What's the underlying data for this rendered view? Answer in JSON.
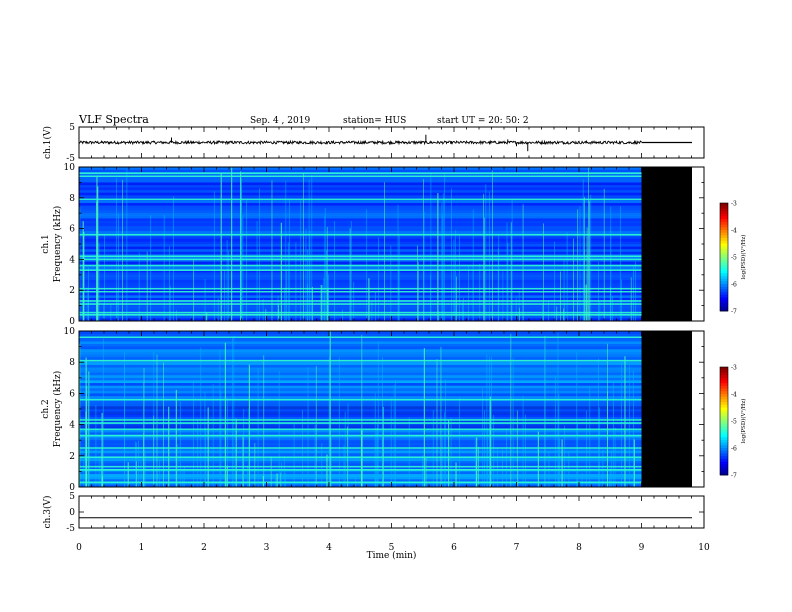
{
  "header": {
    "title": "VLF Spectra",
    "date": "Sep. 4 , 2019",
    "station": "station= HUS",
    "start": "start UT = 20: 50: 2"
  },
  "chart_data": [
    {
      "type": "line",
      "name": "ch1-waveform",
      "ylabel": "ch.1(V)",
      "ylim": [
        -5,
        5
      ],
      "yticks": [
        "5",
        "-5"
      ],
      "xlim": [
        0,
        10
      ],
      "description_values": {
        "baseline": 0,
        "data_end_min": 9.0,
        "spikes": [
          {
            "x": 1.48,
            "y": 1.6
          },
          {
            "x": 5.55,
            "y": 2.5
          },
          {
            "x": 7.18,
            "y": -2.8
          },
          {
            "x": 7.0,
            "y": -1.2
          },
          {
            "x": 6.86,
            "y": 1.0
          }
        ]
      }
    },
    {
      "type": "heatmap",
      "name": "ch1-spectrogram",
      "ylabel_line1": "ch.1",
      "ylabel_line2": "Frequency (kHz)",
      "ylim": [
        0,
        10
      ],
      "yticks": [
        "0",
        "2",
        "4",
        "6",
        "8",
        "10"
      ],
      "xlim": [
        0,
        10
      ],
      "data_end_min": 9.0,
      "background_level": -6.2,
      "bright_lines_khz": [
        0.4,
        0.55,
        1.1,
        1.3,
        1.9,
        2.1,
        3.3,
        3.6,
        4.0,
        4.2,
        5.6,
        7.9,
        9.4,
        9.6
      ],
      "colorbar": {
        "label": "log(PSD)(V²/Hz)",
        "ticks": [
          "-3",
          "-4",
          "-5",
          "-6",
          "-7"
        ],
        "range": [
          -7,
          -3
        ]
      }
    },
    {
      "type": "heatmap",
      "name": "ch2-spectrogram",
      "ylabel_line1": "ch.2",
      "ylabel_line2": "Frequency (kHz)",
      "ylim": [
        0,
        10
      ],
      "yticks": [
        "0",
        "2",
        "4",
        "6",
        "8",
        "10"
      ],
      "xlim": [
        0,
        10
      ],
      "data_end_min": 9.0,
      "background_level": -6.0,
      "bright_lines_khz": [
        0.3,
        1.1,
        1.3,
        1.9,
        2.5,
        3.3,
        3.7,
        4.1,
        4.3,
        5.6,
        8.1,
        9.6
      ],
      "colorbar": {
        "label": "log(PSD)(V²/Hz)",
        "ticks": [
          "-3",
          "-4",
          "-5",
          "-6",
          "-7"
        ],
        "range": [
          -7,
          -3
        ]
      }
    },
    {
      "type": "line",
      "name": "ch3-waveform",
      "ylabel": "ch.3(V)",
      "ylim": [
        -5,
        5
      ],
      "yticks": [
        "5",
        "0",
        "-5"
      ],
      "xlim": [
        0,
        10
      ],
      "description_values": {
        "baseline": -1.8
      }
    }
  ],
  "xaxis": {
    "label": "Time (min)",
    "ticks": [
      "0",
      "1",
      "2",
      "3",
      "4",
      "5",
      "6",
      "7",
      "8",
      "9",
      "10"
    ]
  },
  "colors": {
    "background_ink": "#000000",
    "page": "#ffffff"
  }
}
